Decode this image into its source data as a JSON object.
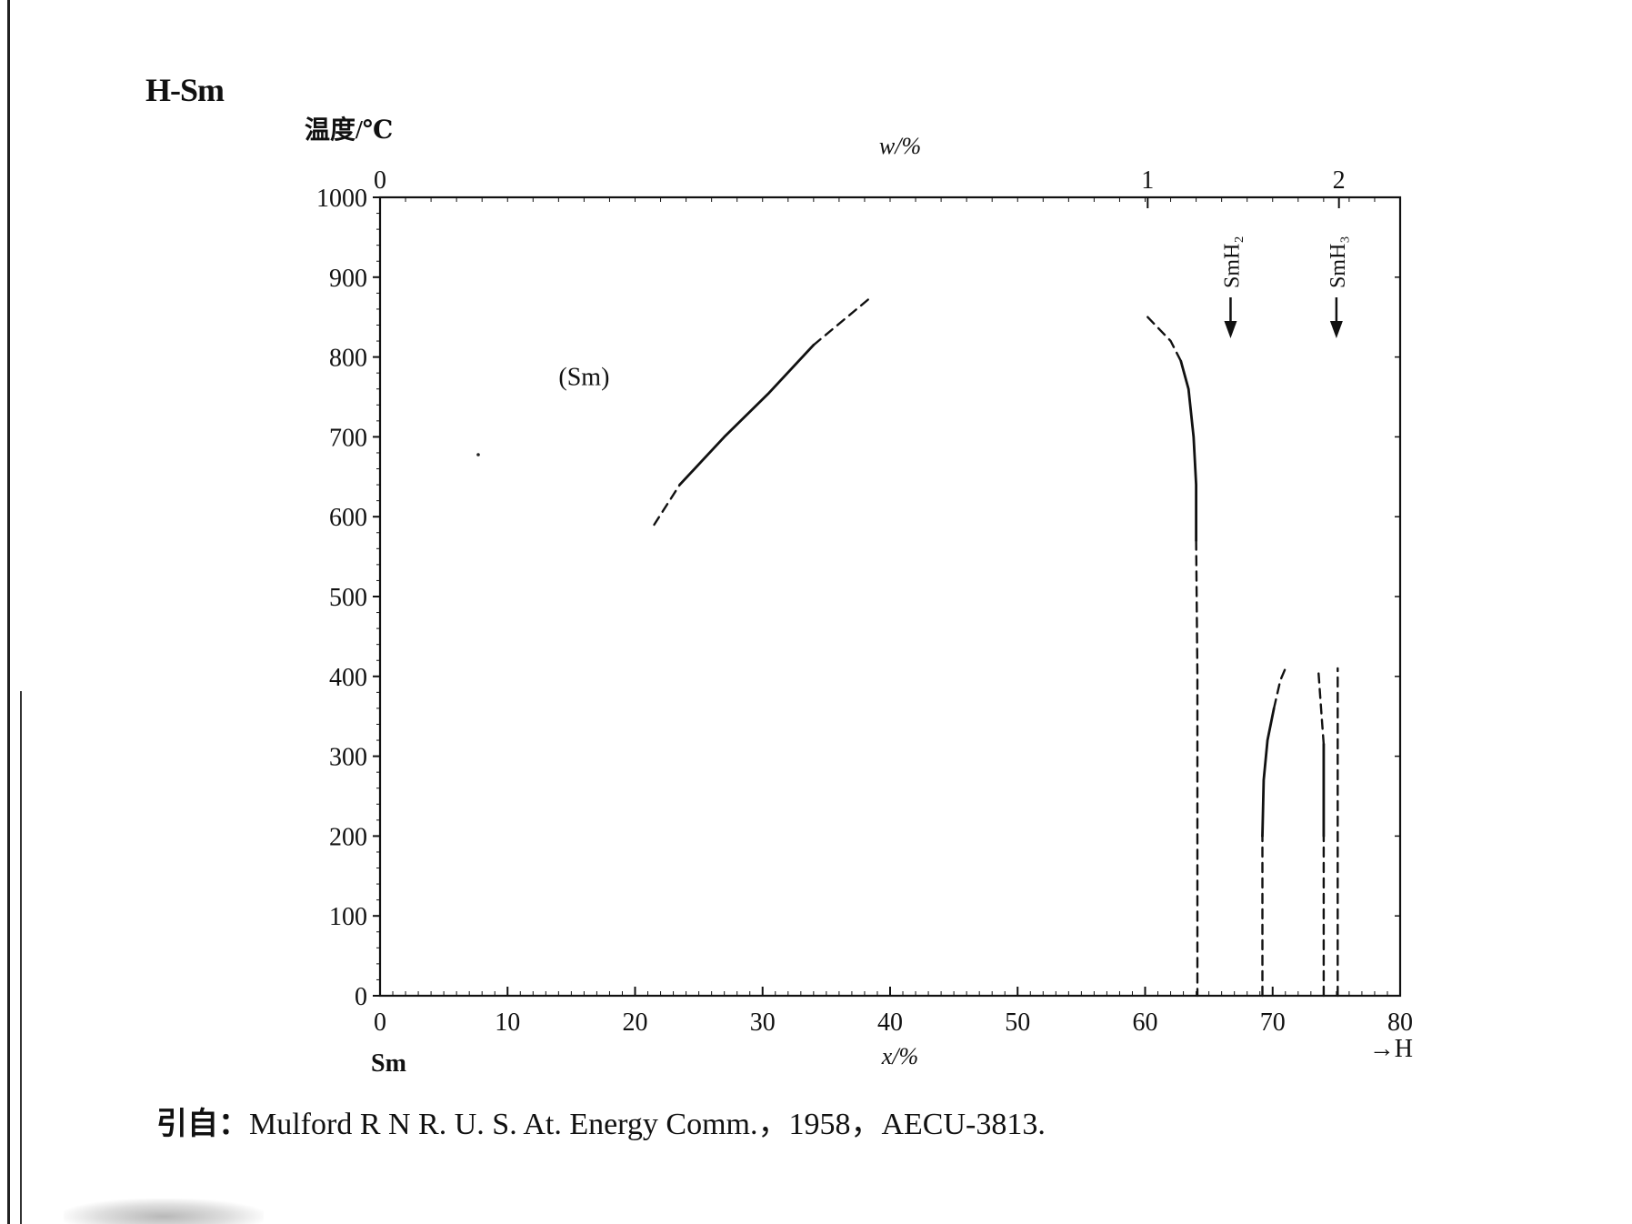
{
  "title": "H-Sm",
  "citation": {
    "lead": "引自：",
    "text": "Mulford R N R. U. S. At. Energy Comm.，1958，AECU-3813."
  },
  "chart_data": {
    "type": "line",
    "title": "H-Sm",
    "ylabel": "温度/℃",
    "xlabel": "x/%",
    "top_axis_label": "w/%",
    "left_element": "Sm",
    "right_element": "→H",
    "xlim": [
      0,
      80
    ],
    "ylim": [
      0,
      1000
    ],
    "x_ticks": [
      "0",
      "10",
      "20",
      "30",
      "40",
      "50",
      "60",
      "70",
      "80"
    ],
    "y_ticks": [
      "0",
      "100",
      "200",
      "300",
      "400",
      "500",
      "600",
      "700",
      "800",
      "900",
      "1000"
    ],
    "top_ticks": [
      {
        "label": "0",
        "x": 0
      },
      {
        "label": "1",
        "x": 60.2
      },
      {
        "label": "2",
        "x": 75.2
      }
    ],
    "region_labels": [
      {
        "text": "(Sm)",
        "x": 16,
        "y": 765
      }
    ],
    "compound_markers": [
      {
        "text": "SmH₂",
        "x": 66.7
      },
      {
        "text": "SmH₃",
        "x": 75
      }
    ],
    "series": [
      {
        "id": "sm-solvus",
        "style": "solid",
        "points": [
          [
            23.5,
            640
          ],
          [
            27,
            700
          ],
          [
            30.5,
            755
          ],
          [
            34,
            815
          ]
        ]
      },
      {
        "id": "sm-solvus",
        "style": "dashed",
        "points": [
          [
            21.5,
            590
          ],
          [
            23.5,
            640
          ]
        ]
      },
      {
        "id": "sm-solvus",
        "style": "dashed",
        "points": [
          [
            34,
            815
          ],
          [
            38.5,
            875
          ]
        ]
      },
      {
        "id": "smh2-lower",
        "style": "dashed",
        "points": [
          [
            60.2,
            850
          ],
          [
            62,
            820
          ],
          [
            62.8,
            795
          ]
        ]
      },
      {
        "id": "smh2-lower",
        "style": "solid",
        "points": [
          [
            62.8,
            795
          ],
          [
            63.4,
            760
          ],
          [
            63.8,
            700
          ],
          [
            64,
            640
          ],
          [
            64,
            570
          ]
        ]
      },
      {
        "id": "smh2-lower",
        "style": "dashed",
        "points": [
          [
            64,
            570
          ],
          [
            64.1,
            400
          ],
          [
            64.1,
            0
          ]
        ]
      },
      {
        "id": "smh2-upper",
        "style": "dashed",
        "points": [
          [
            69.2,
            0
          ],
          [
            69.2,
            200
          ]
        ]
      },
      {
        "id": "smh2-upper",
        "style": "solid",
        "points": [
          [
            69.2,
            200
          ],
          [
            69.3,
            270
          ],
          [
            69.6,
            320
          ],
          [
            70.1,
            360
          ]
        ]
      },
      {
        "id": "smh2-upper",
        "style": "dashed",
        "points": [
          [
            70.1,
            360
          ],
          [
            70.6,
            395
          ],
          [
            71,
            410
          ]
        ]
      },
      {
        "id": "smh3-lower",
        "style": "dashed",
        "points": [
          [
            74,
            0
          ],
          [
            74,
            200
          ]
        ]
      },
      {
        "id": "smh3-lower",
        "style": "solid",
        "points": [
          [
            74,
            200
          ],
          [
            74,
            315
          ]
        ]
      },
      {
        "id": "smh3-lower",
        "style": "dashed",
        "points": [
          [
            74,
            315
          ],
          [
            73.8,
            360
          ],
          [
            73.6,
            405
          ]
        ]
      },
      {
        "id": "smh3-line",
        "style": "dashed",
        "points": [
          [
            75.1,
            0
          ],
          [
            75.1,
            410
          ]
        ]
      }
    ]
  }
}
